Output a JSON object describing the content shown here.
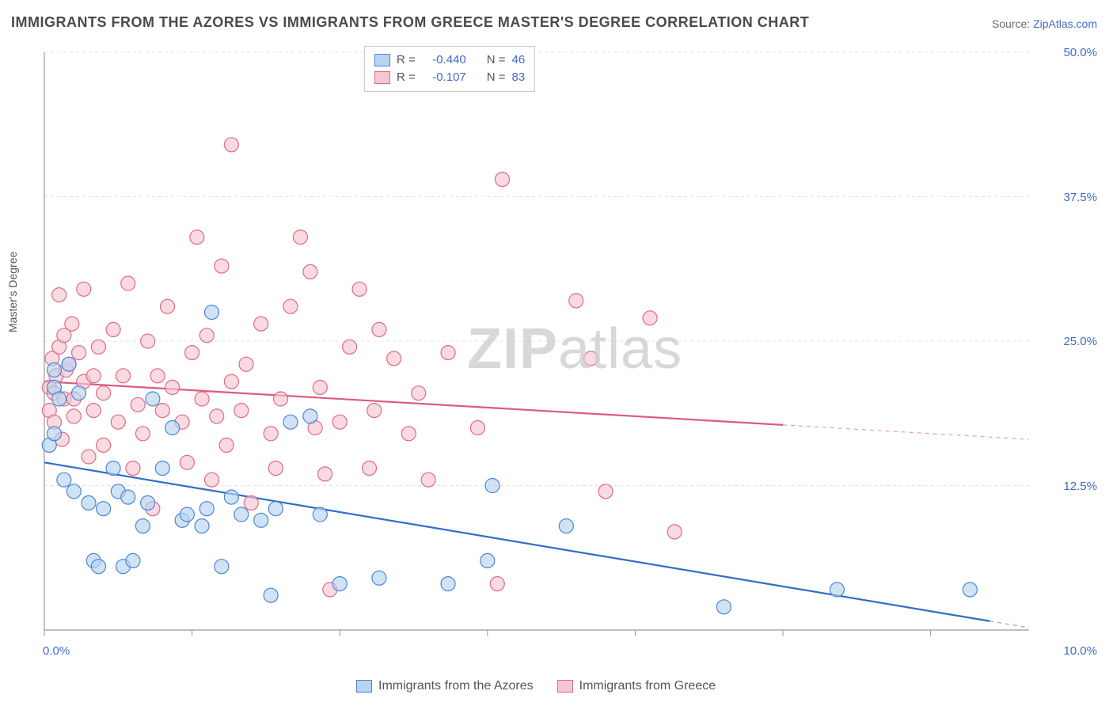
{
  "title": "IMMIGRANTS FROM THE AZORES VS IMMIGRANTS FROM GREECE MASTER'S DEGREE CORRELATION CHART",
  "source": {
    "label": "Source: ",
    "name": "ZipAtlas.com"
  },
  "ylabel": "Master's Degree",
  "watermark": {
    "zip": "ZIP",
    "atlas": "atlas"
  },
  "chart": {
    "type": "scatter",
    "background_color": "#ffffff",
    "axis_color": "#9a9a9a",
    "grid_color": "#e3e3e3",
    "tick_label_color": "#4169c9",
    "xlim": [
      0.0,
      10.0
    ],
    "ylim": [
      0.0,
      50.0
    ],
    "y_ticks": [
      12.5,
      25.0,
      37.5,
      50.0
    ],
    "y_tick_labels": [
      "12.5%",
      "25.0%",
      "37.5%",
      "50.0%"
    ],
    "x_tick_positions": [
      0,
      1.5,
      3.0,
      4.5,
      6.0,
      7.5,
      9.0
    ],
    "x_axis_label_left": "0.0%",
    "x_axis_label_right": "10.0%",
    "marker_radius": 9,
    "marker_stroke_width": 1.2,
    "trend_line_width": 2.2,
    "series": [
      {
        "key": "azores",
        "label": "Immigrants from the Azores",
        "fill": "#b9d3f0",
        "stroke": "#4a86d6",
        "line_color": "#2f6fc6",
        "R": "-0.440",
        "N": "46",
        "trend": {
          "x1": 0.0,
          "y1": 14.5,
          "x2": 10.0,
          "y2": 0.2,
          "x_data_max": 9.6
        },
        "points": [
          [
            0.05,
            16.0
          ],
          [
            0.1,
            21.0
          ],
          [
            0.1,
            22.5
          ],
          [
            0.1,
            17.0
          ],
          [
            0.15,
            20.0
          ],
          [
            0.2,
            13.0
          ],
          [
            0.25,
            23.0
          ],
          [
            0.3,
            12.0
          ],
          [
            0.35,
            20.5
          ],
          [
            0.45,
            11.0
          ],
          [
            0.5,
            6.0
          ],
          [
            0.55,
            5.5
          ],
          [
            0.6,
            10.5
          ],
          [
            0.7,
            14.0
          ],
          [
            0.75,
            12.0
          ],
          [
            0.8,
            5.5
          ],
          [
            0.85,
            11.5
          ],
          [
            0.9,
            6.0
          ],
          [
            1.0,
            9.0
          ],
          [
            1.05,
            11.0
          ],
          [
            1.1,
            20.0
          ],
          [
            1.2,
            14.0
          ],
          [
            1.3,
            17.5
          ],
          [
            1.4,
            9.5
          ],
          [
            1.45,
            10.0
          ],
          [
            1.6,
            9.0
          ],
          [
            1.65,
            10.5
          ],
          [
            1.7,
            27.5
          ],
          [
            1.8,
            5.5
          ],
          [
            1.9,
            11.5
          ],
          [
            2.0,
            10.0
          ],
          [
            2.2,
            9.5
          ],
          [
            2.3,
            3.0
          ],
          [
            2.35,
            10.5
          ],
          [
            2.5,
            18.0
          ],
          [
            2.7,
            18.5
          ],
          [
            2.8,
            10.0
          ],
          [
            3.0,
            4.0
          ],
          [
            3.4,
            4.5
          ],
          [
            4.1,
            4.0
          ],
          [
            4.5,
            6.0
          ],
          [
            4.55,
            12.5
          ],
          [
            5.3,
            9.0
          ],
          [
            6.9,
            2.0
          ],
          [
            8.05,
            3.5
          ],
          [
            9.4,
            3.5
          ]
        ]
      },
      {
        "key": "greece",
        "label": "Immigrants from Greece",
        "fill": "#f6c6d1",
        "stroke": "#e06a87",
        "line_color": "#dc5b7d",
        "R": "-0.107",
        "N": "83",
        "trend": {
          "x1": 0.0,
          "y1": 21.5,
          "x2": 10.0,
          "y2": 16.5,
          "x_data_max": 7.5
        },
        "points": [
          [
            0.05,
            19.0
          ],
          [
            0.05,
            21.0
          ],
          [
            0.08,
            23.5
          ],
          [
            0.1,
            18.0
          ],
          [
            0.1,
            20.5
          ],
          [
            0.12,
            22.0
          ],
          [
            0.15,
            29.0
          ],
          [
            0.15,
            24.5
          ],
          [
            0.18,
            16.5
          ],
          [
            0.2,
            25.5
          ],
          [
            0.2,
            20.0
          ],
          [
            0.22,
            22.5
          ],
          [
            0.25,
            23.0
          ],
          [
            0.28,
            26.5
          ],
          [
            0.3,
            18.5
          ],
          [
            0.3,
            20.0
          ],
          [
            0.35,
            24.0
          ],
          [
            0.4,
            21.5
          ],
          [
            0.4,
            29.5
          ],
          [
            0.45,
            15.0
          ],
          [
            0.5,
            22.0
          ],
          [
            0.5,
            19.0
          ],
          [
            0.55,
            24.5
          ],
          [
            0.6,
            16.0
          ],
          [
            0.6,
            20.5
          ],
          [
            0.7,
            26.0
          ],
          [
            0.75,
            18.0
          ],
          [
            0.8,
            22.0
          ],
          [
            0.85,
            30.0
          ],
          [
            0.9,
            14.0
          ],
          [
            0.95,
            19.5
          ],
          [
            1.0,
            17.0
          ],
          [
            1.05,
            25.0
          ],
          [
            1.1,
            10.5
          ],
          [
            1.15,
            22.0
          ],
          [
            1.2,
            19.0
          ],
          [
            1.25,
            28.0
          ],
          [
            1.3,
            21.0
          ],
          [
            1.4,
            18.0
          ],
          [
            1.45,
            14.5
          ],
          [
            1.5,
            24.0
          ],
          [
            1.55,
            34.0
          ],
          [
            1.6,
            20.0
          ],
          [
            1.65,
            25.5
          ],
          [
            1.7,
            13.0
          ],
          [
            1.75,
            18.5
          ],
          [
            1.8,
            31.5
          ],
          [
            1.85,
            16.0
          ],
          [
            1.9,
            21.5
          ],
          [
            1.9,
            42.0
          ],
          [
            2.0,
            19.0
          ],
          [
            2.05,
            23.0
          ],
          [
            2.1,
            11.0
          ],
          [
            2.2,
            26.5
          ],
          [
            2.3,
            17.0
          ],
          [
            2.35,
            14.0
          ],
          [
            2.4,
            20.0
          ],
          [
            2.5,
            28.0
          ],
          [
            2.6,
            34.0
          ],
          [
            2.7,
            31.0
          ],
          [
            2.75,
            17.5
          ],
          [
            2.8,
            21.0
          ],
          [
            2.85,
            13.5
          ],
          [
            2.9,
            3.5
          ],
          [
            3.0,
            18.0
          ],
          [
            3.1,
            24.5
          ],
          [
            3.2,
            29.5
          ],
          [
            3.3,
            14.0
          ],
          [
            3.35,
            19.0
          ],
          [
            3.4,
            26.0
          ],
          [
            3.55,
            23.5
          ],
          [
            3.7,
            17.0
          ],
          [
            3.8,
            20.5
          ],
          [
            3.9,
            13.0
          ],
          [
            4.1,
            24.0
          ],
          [
            4.4,
            17.5
          ],
          [
            4.6,
            4.0
          ],
          [
            4.65,
            39.0
          ],
          [
            5.4,
            28.5
          ],
          [
            5.55,
            23.5
          ],
          [
            5.7,
            12.0
          ],
          [
            6.15,
            27.0
          ],
          [
            6.4,
            8.5
          ]
        ]
      }
    ],
    "legend_box": {
      "rows": [
        {
          "series": "azores",
          "r_label": "R =",
          "n_label": "N ="
        },
        {
          "series": "greece",
          "r_label": "R =",
          "n_label": "N ="
        }
      ]
    }
  }
}
